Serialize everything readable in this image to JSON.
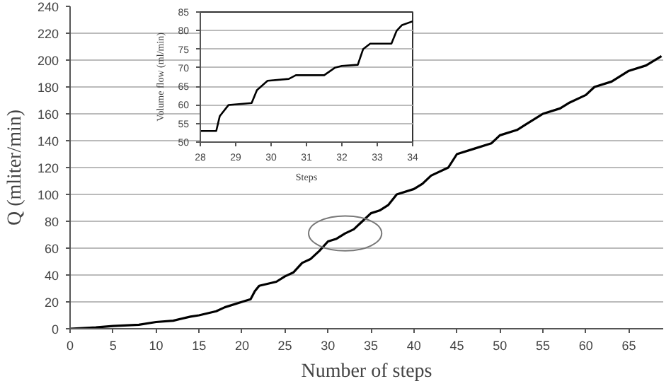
{
  "chart_data": [
    {
      "type": "line",
      "xlabel": "Number of steps",
      "ylabel": "Q (mliter/min)",
      "xlim": [
        0,
        69
      ],
      "ylim": [
        0,
        240
      ],
      "xticks": [
        0,
        5,
        10,
        15,
        20,
        25,
        30,
        35,
        40,
        45,
        50,
        55,
        60,
        65
      ],
      "yticks": [
        0,
        20,
        40,
        60,
        80,
        100,
        120,
        140,
        160,
        180,
        200,
        220,
        240
      ],
      "grid": "y",
      "series": [
        {
          "color": "#000000",
          "x": [
            0,
            3,
            5,
            8,
            10,
            12,
            14,
            15,
            17,
            18,
            20,
            21,
            21.5,
            22,
            24,
            25,
            26,
            27,
            28,
            29,
            30,
            31,
            32,
            33,
            34,
            35,
            36,
            37,
            38,
            40,
            41,
            42,
            44,
            45,
            47,
            49,
            50,
            52,
            53,
            55,
            57,
            58,
            60,
            61,
            63,
            65,
            67,
            68.8
          ],
          "values": [
            0,
            1,
            2,
            3,
            5,
            6,
            9,
            10,
            13,
            16,
            20,
            22,
            28,
            32,
            35,
            39,
            42,
            49,
            52,
            58,
            65,
            67,
            71,
            74,
            80,
            86,
            88,
            92,
            100,
            104,
            108,
            114,
            120,
            130,
            134,
            138,
            144,
            148,
            152,
            160,
            164,
            168,
            174,
            180,
            184,
            192,
            196,
            203
          ]
        }
      ]
    },
    {
      "type": "line",
      "xlabel": "Steps",
      "ylabel": "Volume flow (ml/min)",
      "xlim": [
        28,
        34
      ],
      "ylim": [
        50,
        85
      ],
      "xticks": [
        28,
        29,
        30,
        31,
        32,
        33,
        34
      ],
      "yticks": [
        50,
        55,
        60,
        65,
        70,
        75,
        80,
        85
      ],
      "grid": "y",
      "series": [
        {
          "color": "#000000",
          "x": [
            28,
            28.45,
            28.55,
            28.8,
            29.45,
            29.6,
            29.9,
            30.5,
            30.7,
            31.5,
            31.8,
            32,
            32.45,
            32.6,
            32.8,
            33.4,
            33.55,
            33.7,
            34
          ],
          "values": [
            53,
            53,
            57,
            60,
            60.5,
            64,
            66.5,
            67,
            68,
            68,
            70,
            70.5,
            70.8,
            75,
            76.5,
            76.5,
            80,
            81.5,
            82.5
          ]
        }
      ]
    }
  ]
}
